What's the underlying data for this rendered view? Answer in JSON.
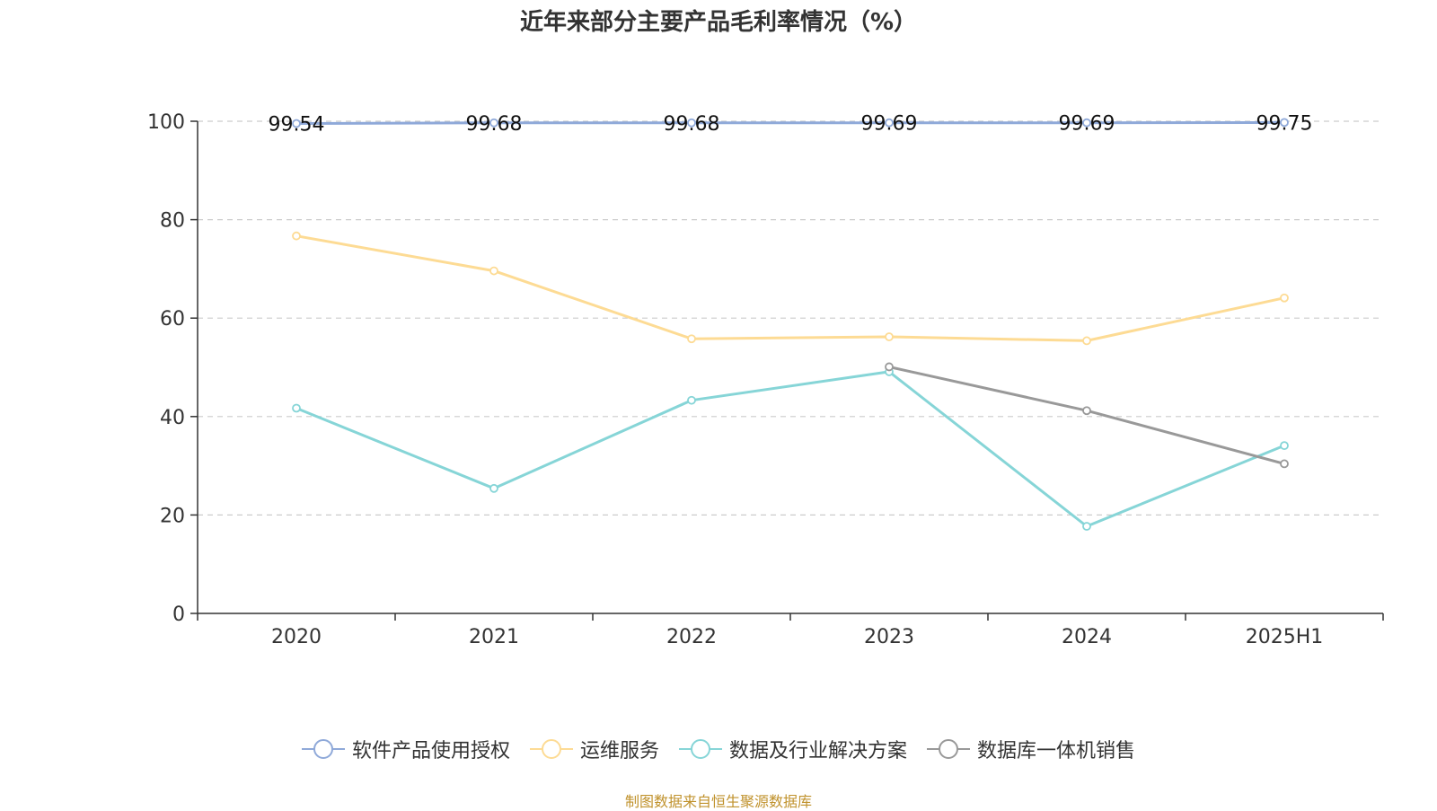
{
  "colors": {
    "axis": "#333333",
    "grid": "#cccccc",
    "source": "#c0922c"
  },
  "source_note": "制图数据来自恒生聚源数据库",
  "chart_data": {
    "type": "line",
    "title": "近年来部分主要产品毛利率情况（%）",
    "xlabel": "",
    "ylabel": "",
    "ylim": [
      0,
      100
    ],
    "yticks": [
      0,
      20,
      40,
      60,
      80,
      100
    ],
    "grid": true,
    "legend_position": "bottom",
    "categories": [
      "2020",
      "2021",
      "2022",
      "2023",
      "2024",
      "2025H1"
    ],
    "series": [
      {
        "name": "软件产品使用授权",
        "color": "#8fa9d9",
        "values": [
          99.54,
          99.68,
          99.68,
          99.69,
          99.69,
          99.75
        ],
        "labels": [
          "99.54",
          "99.68",
          "99.68",
          "99.69",
          "99.69",
          "99.75"
        ]
      },
      {
        "name": "运维服务",
        "color": "#fddb94",
        "values": [
          76.7,
          69.6,
          55.8,
          56.2,
          55.4,
          64.1
        ]
      },
      {
        "name": "数据及行业解决方案",
        "color": "#86d5d7",
        "values": [
          41.7,
          25.4,
          43.3,
          49.1,
          17.7,
          34.1
        ]
      },
      {
        "name": "数据库一体机销售",
        "color": "#999999",
        "values": [
          null,
          null,
          null,
          50.1,
          41.2,
          30.4
        ]
      }
    ]
  }
}
